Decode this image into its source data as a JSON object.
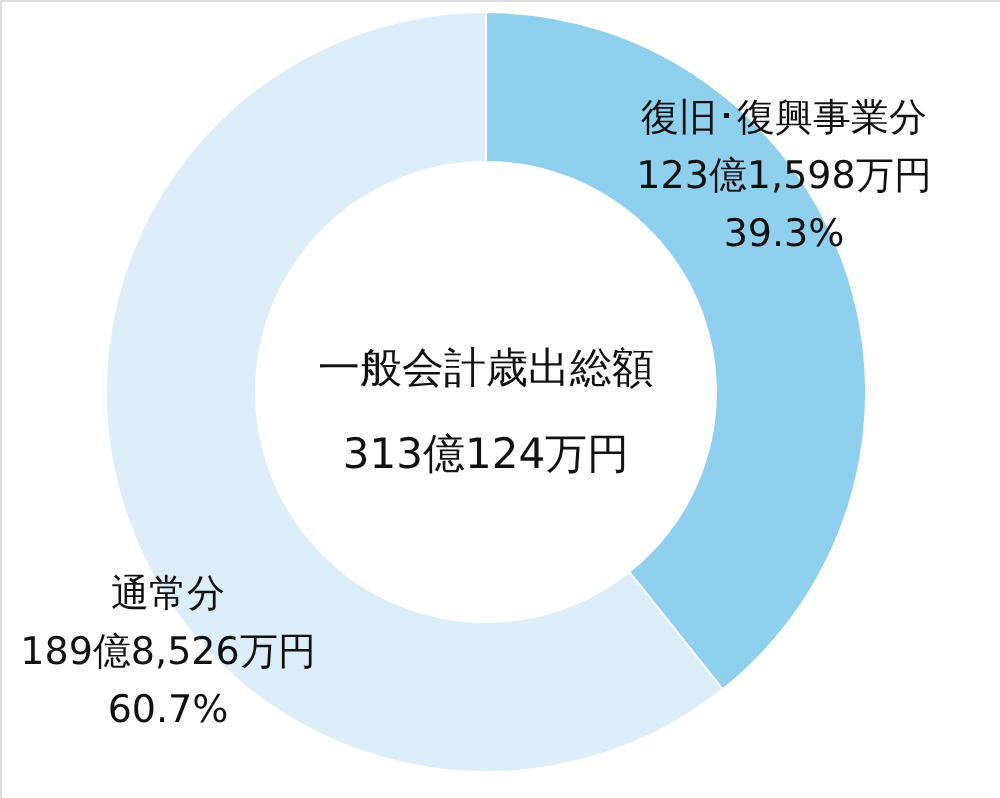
{
  "chart_data": {
    "type": "donut",
    "categories": [
      "復旧･復興事業分",
      "通常分"
    ],
    "values": [
      39.3,
      60.7
    ],
    "colors": [
      "#8fd0ef",
      "#dceef9"
    ],
    "value_labels": [
      "123億1,598万円\n39.3%",
      "189億8,526万円\n60.7%"
    ],
    "annotations": [
      "一般会計歳出総額",
      "313億124万円"
    ]
  }
}
